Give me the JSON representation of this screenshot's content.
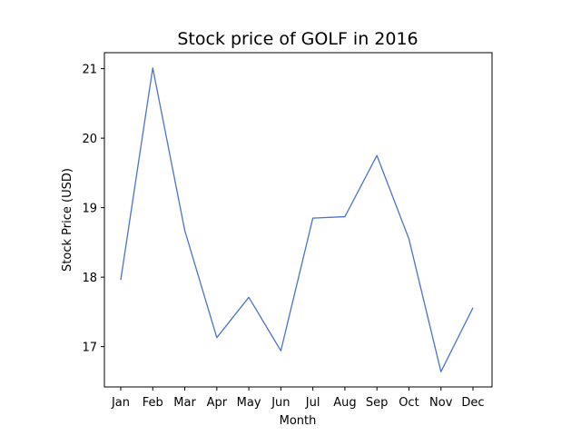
{
  "chart_data": {
    "type": "line",
    "title": "Stock price of GOLF in 2016",
    "xlabel": "Month",
    "ylabel": "Stock Price (USD)",
    "categories": [
      "Jan",
      "Feb",
      "Mar",
      "Apr",
      "May",
      "Jun",
      "Jul",
      "Aug",
      "Sep",
      "Oct",
      "Nov",
      "Dec"
    ],
    "series": [
      {
        "values": [
          17.96,
          21.01,
          18.67,
          17.13,
          17.71,
          16.94,
          18.85,
          18.87,
          19.75,
          18.55,
          16.64,
          17.56
        ],
        "color": "#4a72d1"
      }
    ],
    "yticks": [
      17,
      18,
      19,
      20,
      21
    ],
    "ylim": [
      16.42,
      21.23
    ],
    "grid": false,
    "legend": "none"
  }
}
